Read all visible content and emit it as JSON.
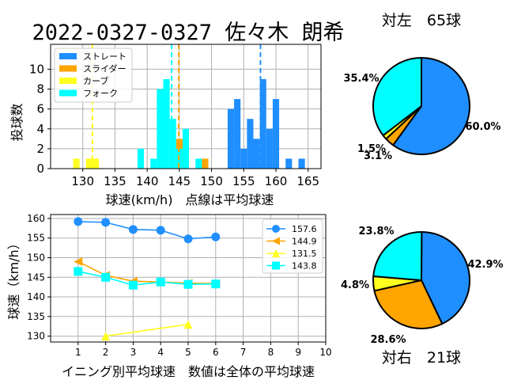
{
  "title": "2022-0327-0327 佐々木 朗希",
  "colors": {
    "straight": "#1f8fff",
    "slider": "#ffa500",
    "curve": "#ffff20",
    "fork": "#00ffff"
  },
  "chart_data": [
    {
      "type": "bar",
      "id": "histogram",
      "xlabel": "球速(km/h)　点線は平均球速",
      "ylabel": "投球数",
      "xlim": [
        125,
        167
      ],
      "ylim": [
        0,
        12.5
      ],
      "xticks": [
        130,
        135,
        140,
        145,
        150,
        155,
        160,
        165
      ],
      "yticks": [
        0,
        2,
        4,
        6,
        8,
        10
      ],
      "grid": true,
      "legend_position": "top-left",
      "bin_width": 1,
      "series": [
        {
          "name": "ストレート",
          "color": "#1f8fff",
          "mean": 157.6,
          "bins": [
            [
              153,
              6
            ],
            [
              154,
              7
            ],
            [
              155,
              2
            ],
            [
              156,
              5
            ],
            [
              157,
              3
            ],
            [
              158,
              9
            ],
            [
              159,
              4
            ],
            [
              160,
              7
            ],
            [
              162,
              1
            ],
            [
              164,
              1
            ]
          ]
        },
        {
          "name": "スライダー",
          "color": "#ffa500",
          "mean": 144.9,
          "bins": [
            [
              143,
              3
            ],
            [
              145,
              3
            ],
            [
              146,
              1
            ],
            [
              149,
              1
            ]
          ]
        },
        {
          "name": "カーブ",
          "color": "#ffff20",
          "mean": 131.5,
          "bins": [
            [
              129,
              1
            ],
            [
              131,
              1
            ],
            [
              132,
              1
            ]
          ]
        },
        {
          "name": "フォーク",
          "color": "#00ffff",
          "mean": 143.8,
          "bins": [
            [
              139,
              2
            ],
            [
              141,
              1
            ],
            [
              142,
              8
            ],
            [
              143,
              9
            ],
            [
              144,
              5
            ],
            [
              145,
              2
            ],
            [
              146,
              4
            ],
            [
              148,
              1
            ]
          ]
        }
      ]
    },
    {
      "type": "line",
      "id": "inning-chart",
      "xlabel": "イニング別平均球速　数値は全体の平均球速",
      "ylabel": "球速（km/h）",
      "xlim": [
        0,
        10
      ],
      "ylim": [
        128.5,
        161
      ],
      "xticks": [
        1,
        2,
        3,
        4,
        5,
        6,
        7,
        8,
        9,
        10
      ],
      "yticks": [
        130,
        135,
        140,
        145,
        150,
        155,
        160
      ],
      "grid": true,
      "legend_position": "top-right",
      "series": [
        {
          "name": "157.6",
          "color": "#1f8fff",
          "marker": "circle",
          "points": [
            [
              1,
              159.2
            ],
            [
              2,
              159.0
            ],
            [
              3,
              157.2
            ],
            [
              4,
              157.0
            ],
            [
              5,
              154.8
            ],
            [
              6,
              155.3
            ]
          ]
        },
        {
          "name": "144.9",
          "color": "#ffa500",
          "marker": "triangle-left",
          "points": [
            [
              1,
              149.0
            ],
            [
              2,
              145.5
            ],
            [
              3,
              144.0
            ],
            [
              4,
              143.8
            ],
            [
              5,
              143.5
            ],
            [
              6,
              143.4
            ]
          ]
        },
        {
          "name": "131.5",
          "color": "#ffff20",
          "marker": "triangle-up",
          "points": [
            [
              2,
              130.0
            ],
            [
              5,
              133.0
            ]
          ]
        },
        {
          "name": "143.8",
          "color": "#00ffff",
          "marker": "square",
          "points": [
            [
              1,
              146.5
            ],
            [
              2,
              145.0
            ],
            [
              3,
              143.0
            ],
            [
              4,
              143.8
            ],
            [
              5,
              143.2
            ],
            [
              6,
              143.3
            ]
          ]
        }
      ]
    },
    {
      "type": "pie",
      "id": "pie-left",
      "title": "対左　65球",
      "slices": [
        {
          "name": "ストレート",
          "percent": 60.0,
          "label": "60.0%",
          "color": "#1f8fff"
        },
        {
          "name": "スライダー",
          "percent": 3.1,
          "label": "3.1%",
          "color": "#ffa500"
        },
        {
          "name": "カーブ",
          "percent": 1.5,
          "label": "1.5%",
          "color": "#ffff20"
        },
        {
          "name": "フォーク",
          "percent": 35.4,
          "label": "35.4%",
          "color": "#00ffff"
        }
      ]
    },
    {
      "type": "pie",
      "id": "pie-right",
      "title": "対右　21球",
      "slices": [
        {
          "name": "ストレート",
          "percent": 42.9,
          "label": "42.9%",
          "color": "#1f8fff"
        },
        {
          "name": "スライダー",
          "percent": 28.6,
          "label": "28.6%",
          "color": "#ffa500"
        },
        {
          "name": "カーブ",
          "percent": 4.8,
          "label": "4.8%",
          "color": "#ffff20"
        },
        {
          "name": "フォーク",
          "percent": 23.8,
          "label": "23.8%",
          "color": "#00ffff"
        }
      ]
    }
  ]
}
